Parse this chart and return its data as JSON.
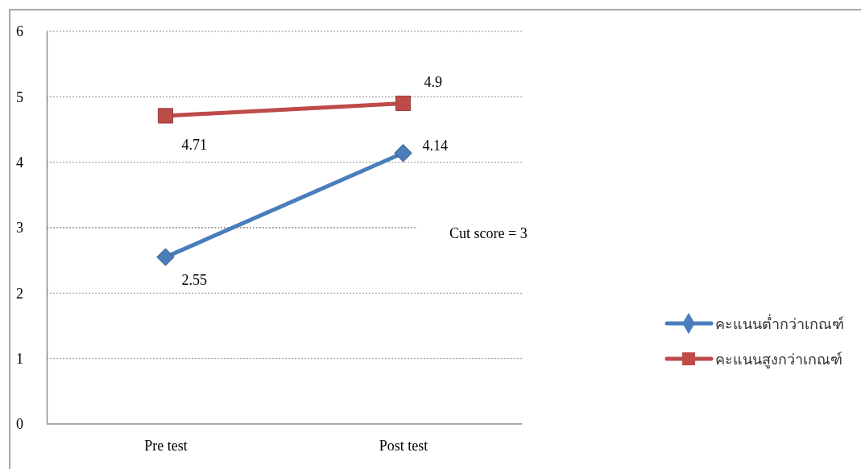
{
  "chart_data": {
    "type": "line",
    "categories": [
      "Pre test",
      "Post test"
    ],
    "series": [
      {
        "name": "คะแนนต่ำกว่าเกณฑ์",
        "color": "#4a7ebb",
        "values": [
          2.55,
          4.14
        ],
        "marker": "diamond"
      },
      {
        "name": "คะแนนสูงกว่าเกณฑ์",
        "color": "#be4b48",
        "values": [
          4.71,
          4.9
        ],
        "marker": "square"
      }
    ],
    "ylim": [
      0,
      6
    ],
    "yticks": [
      0,
      1,
      2,
      3,
      4,
      5,
      6
    ],
    "grid": "y",
    "legend": "right",
    "data_labels": true,
    "ref_lines": [
      {
        "axis": "y",
        "value": 3,
        "label": "Cut score = 3",
        "color": "#8c8c8c",
        "line_style": "dotted"
      }
    ]
  }
}
